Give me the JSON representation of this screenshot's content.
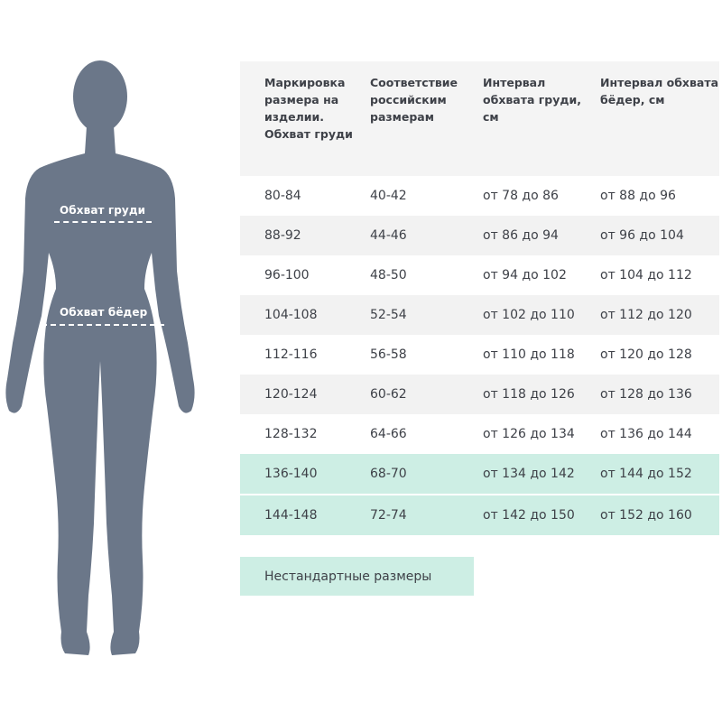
{
  "figure": {
    "color": "#6b7789",
    "labels": {
      "chest": "Обхват груди",
      "hips": "Обхват бёдер"
    }
  },
  "table": {
    "headers": [
      "Маркировка размера на изделии. Обхват груди",
      "Соответствие российским размерам",
      "Интервал обхвата груди, см",
      "Интервал обхвата бёдер, см"
    ],
    "rows": [
      {
        "cells": [
          "80-84",
          "40-42",
          "от 78 до 86",
          "от 88 до 96"
        ],
        "highlight": false
      },
      {
        "cells": [
          "88-92",
          "44-46",
          "от 86 до 94",
          "от 96 до 104"
        ],
        "highlight": false
      },
      {
        "cells": [
          "96-100",
          "48-50",
          "от 94 до 102",
          "от 104 до 112"
        ],
        "highlight": false
      },
      {
        "cells": [
          "104-108",
          "52-54",
          "от 102 до 110",
          "от 112 до 120"
        ],
        "highlight": false
      },
      {
        "cells": [
          "112-116",
          "56-58",
          "от 110 до 118",
          "от 120 до 128"
        ],
        "highlight": false
      },
      {
        "cells": [
          "120-124",
          "60-62",
          "от 118 до 126",
          "от 128 до 136"
        ],
        "highlight": false
      },
      {
        "cells": [
          "128-132",
          "64-66",
          "от 126 до 134",
          "от 136 до 144"
        ],
        "highlight": false
      },
      {
        "cells": [
          "136-140",
          "68-70",
          "от 134 до 142",
          "от 144 до 152"
        ],
        "highlight": true
      },
      {
        "cells": [
          "144-148",
          "72-74",
          "от 142 до 150",
          "от 152 до 160"
        ],
        "highlight": true
      }
    ],
    "highlight_color": "#cdeee4"
  },
  "nonstandard": {
    "label": "Нестандартные размеры"
  }
}
